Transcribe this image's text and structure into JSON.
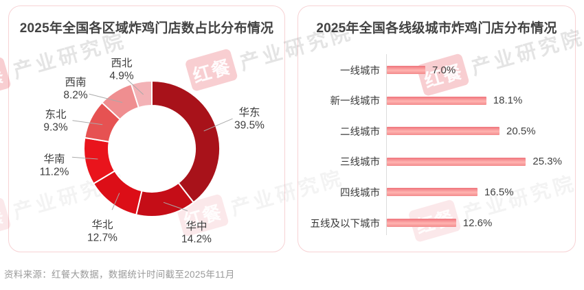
{
  "page": {
    "source_note": "资料来源：红餐大数据，数据统计时间截至2025年11月"
  },
  "watermark": {
    "brand": "红餐",
    "org": "产业研究院"
  },
  "chart_data": [
    {
      "type": "pie",
      "subtype": "donut",
      "title": "2025年全国各区域炸鸡门店数占比分布情况",
      "categories": [
        "华东",
        "华中",
        "华北",
        "华南",
        "东北",
        "西南",
        "西北"
      ],
      "values": [
        39.5,
        14.2,
        12.7,
        11.2,
        9.3,
        8.2,
        4.9
      ],
      "value_labels": [
        "39.5%",
        "14.2%",
        "12.7%",
        "11.2%",
        "9.3%",
        "8.2%",
        "4.9%"
      ],
      "colors": [
        "#a8121a",
        "#c50d17",
        "#dc0e17",
        "#e9141c",
        "#e65252",
        "#ef8e90",
        "#f3b2b6"
      ],
      "start_angle_deg": 0,
      "direction": "clockwise",
      "leader_line_color": "#aaaaaa",
      "label_text_color": "#3d3d3d",
      "slice_gap_color": "#ffffff"
    },
    {
      "type": "bar",
      "orientation": "horizontal",
      "title": "2025年全国各线级城市炸鸡门店分布情况",
      "categories": [
        "一线城市",
        "新一线城市",
        "二线城市",
        "三线城市",
        "四线城市",
        "五线及以下城市"
      ],
      "values": [
        7.0,
        18.1,
        20.5,
        25.3,
        16.5,
        12.6
      ],
      "value_labels": [
        "7.0%",
        "18.1%",
        "20.5%",
        "25.3%",
        "16.5%",
        "12.6%"
      ],
      "bar_gradient": [
        "#ef737b",
        "#ffb4b1",
        "#f38a8b"
      ],
      "axis_line": true,
      "xlim": [
        0,
        26
      ],
      "grid": false,
      "legend": "none"
    }
  ]
}
